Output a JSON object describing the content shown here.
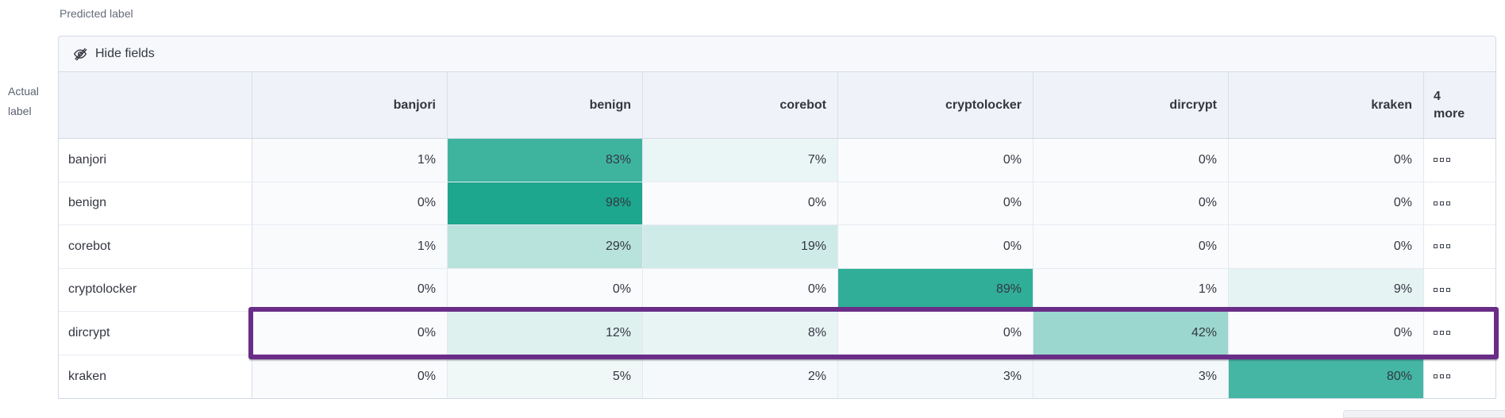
{
  "axes": {
    "predicted": "Predicted label",
    "actual_line1": "Actual",
    "actual_line2": "label"
  },
  "toolbar": {
    "hide_fields": "Hide fields",
    "hide_fields_icon": "eye-closed-icon"
  },
  "grid": {
    "corner_label": "",
    "columns": [
      "banjori",
      "benign",
      "corebot",
      "cryptolocker",
      "dircrypt",
      "kraken"
    ],
    "more_column_label": "4 more",
    "row_actions_icon": "boxes-horizontal-icon",
    "rows": [
      {
        "label": "banjori",
        "values": [
          "1%",
          "83%",
          "7%",
          "0%",
          "0%",
          "0%"
        ]
      },
      {
        "label": "benign",
        "values": [
          "0%",
          "98%",
          "0%",
          "0%",
          "0%",
          "0%"
        ]
      },
      {
        "label": "corebot",
        "values": [
          "1%",
          "29%",
          "19%",
          "0%",
          "0%",
          "0%"
        ]
      },
      {
        "label": "cryptolocker",
        "values": [
          "0%",
          "0%",
          "0%",
          "89%",
          "1%",
          "9%"
        ]
      },
      {
        "label": "dircrypt",
        "values": [
          "0%",
          "12%",
          "8%",
          "0%",
          "42%",
          "0%"
        ],
        "highlighted": true
      },
      {
        "label": "kraken",
        "values": [
          "0%",
          "5%",
          "2%",
          "3%",
          "3%",
          "80%"
        ]
      }
    ]
  },
  "colors": {
    "heat_min": "#FAFBFD",
    "heat_max": "#17A58C",
    "highlight_border": "#6A2D87",
    "header_bg": "#EFF2F8",
    "toolbar_bg": "#F6F8FB",
    "panel_border": "#D3DAE6",
    "text": "#343741",
    "muted_text": "#646B79"
  },
  "chart_data": {
    "type": "heatmap",
    "x_label": "Predicted label",
    "y_label": "Actual label",
    "x_categories": [
      "banjori",
      "benign",
      "corebot",
      "cryptolocker",
      "dircrypt",
      "kraken"
    ],
    "y_categories": [
      "banjori",
      "benign",
      "corebot",
      "cryptolocker",
      "dircrypt",
      "kraken"
    ],
    "values_percent": [
      [
        1,
        83,
        7,
        0,
        0,
        0
      ],
      [
        0,
        98,
        0,
        0,
        0,
        0
      ],
      [
        1,
        29,
        19,
        0,
        0,
        0
      ],
      [
        0,
        0,
        0,
        89,
        1,
        9
      ],
      [
        0,
        12,
        8,
        0,
        42,
        0
      ],
      [
        0,
        5,
        2,
        3,
        3,
        80
      ]
    ],
    "hidden_columns_label": "4 more",
    "legend": "off",
    "color_scale": [
      "#FAFBFD",
      "#17A58C"
    ]
  }
}
